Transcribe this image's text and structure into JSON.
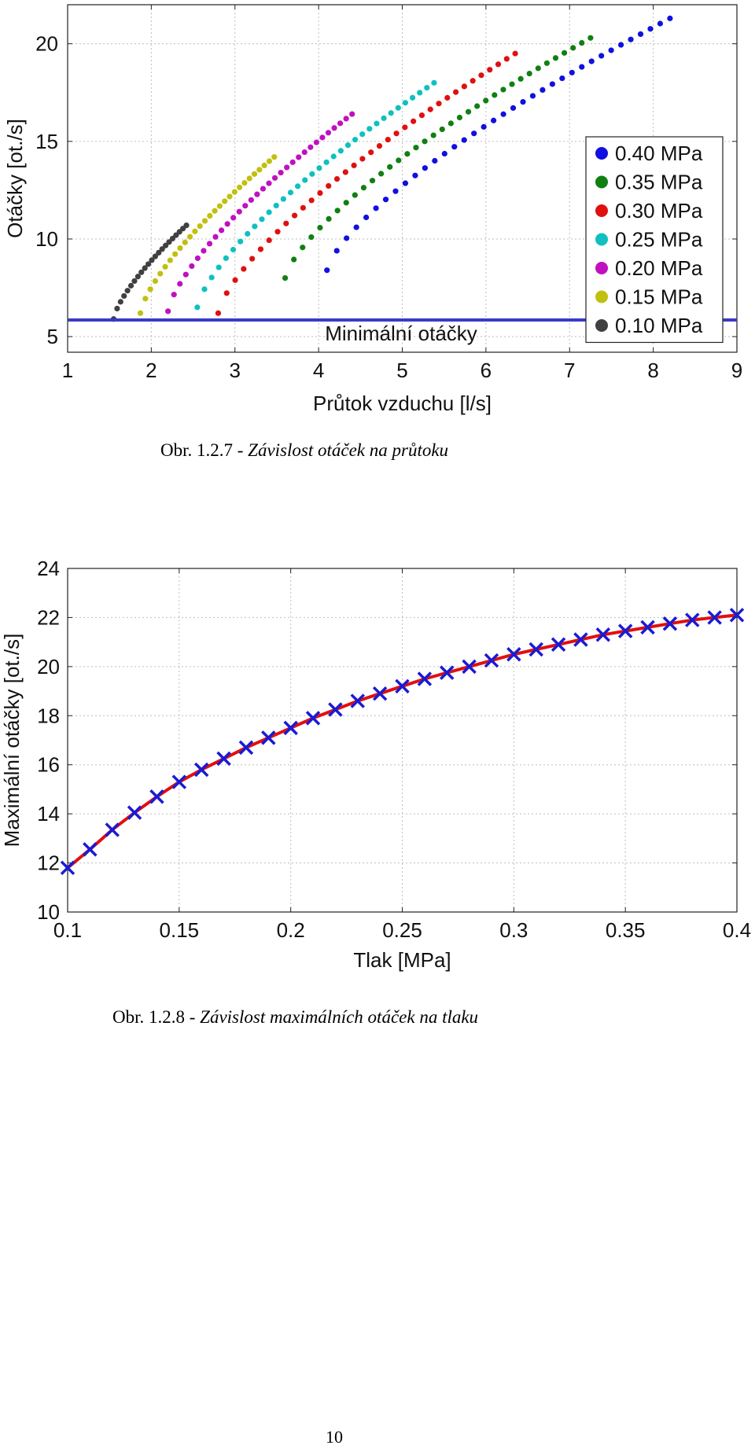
{
  "chart_data": [
    {
      "type": "scatter",
      "xlabel": "Průtok vzduchu [l/s]",
      "ylabel": "Otáčky [ot./s]",
      "xlim": [
        1,
        9
      ],
      "ylim": [
        4.2,
        22
      ],
      "xticks": [
        1,
        2,
        3,
        4,
        5,
        6,
        7,
        8,
        9
      ],
      "yticks": [
        5,
        10,
        15,
        20
      ],
      "grid": true,
      "legend_position": "right",
      "series": [
        {
          "name": "0.40 MPa",
          "color": "#1010e0",
          "x_start": 4.1,
          "x_end": 8.2,
          "y_start": 8.4,
          "y_end": 21.3,
          "points": 36
        },
        {
          "name": "0.35 MPa",
          "color": "#108010",
          "x_start": 3.6,
          "x_end": 7.25,
          "y_start": 8.0,
          "y_end": 20.3,
          "points": 36
        },
        {
          "name": "0.30 MPa",
          "color": "#e01010",
          "x_start": 2.8,
          "x_end": 6.35,
          "y_start": 6.2,
          "y_end": 19.5,
          "points": 36
        },
        {
          "name": "0.25 MPa",
          "color": "#10c0c0",
          "x_start": 2.55,
          "x_end": 5.38,
          "y_start": 6.5,
          "y_end": 18.0,
          "points": 34
        },
        {
          "name": "0.20 MPa",
          "color": "#c010c0",
          "x_start": 2.2,
          "x_end": 4.4,
          "y_start": 6.3,
          "y_end": 16.4,
          "points": 32
        },
        {
          "name": "0.15 MPa",
          "color": "#c0c010",
          "x_start": 1.87,
          "x_end": 3.47,
          "y_start": 6.2,
          "y_end": 14.2,
          "points": 28
        },
        {
          "name": "0.10 MPa",
          "color": "#404040",
          "x_start": 1.55,
          "x_end": 2.42,
          "y_start": 5.9,
          "y_end": 10.7,
          "points": 22
        }
      ],
      "hline": {
        "y": 5.85,
        "color": "#3b3bc4",
        "label": "Minimální otáčky"
      }
    },
    {
      "type": "line",
      "xlabel": "Tlak [MPa]",
      "ylabel": "Maximální otáčky [ot./s]",
      "xlim": [
        0.1,
        0.4
      ],
      "ylim": [
        10,
        24
      ],
      "xticks": [
        0.1,
        0.15,
        0.2,
        0.25,
        0.3,
        0.35,
        0.4
      ],
      "xtick_labels": [
        "0.1",
        "0.15",
        "0.2",
        "0.25",
        "0.3",
        "0.35",
        "0.4"
      ],
      "yticks": [
        10,
        12,
        14,
        16,
        18,
        20,
        22,
        24
      ],
      "grid": true,
      "fit_color": "#e01010",
      "marker_color": "#1a1ad4",
      "x": [
        0.1,
        0.11,
        0.12,
        0.13,
        0.14,
        0.15,
        0.16,
        0.17,
        0.18,
        0.19,
        0.2,
        0.21,
        0.22,
        0.23,
        0.24,
        0.25,
        0.26,
        0.27,
        0.28,
        0.29,
        0.3,
        0.31,
        0.32,
        0.33,
        0.34,
        0.35,
        0.36,
        0.37,
        0.38,
        0.39,
        0.4
      ],
      "y": [
        11.8,
        12.55,
        13.35,
        14.05,
        14.7,
        15.3,
        15.8,
        16.25,
        16.7,
        17.1,
        17.5,
        17.9,
        18.25,
        18.6,
        18.9,
        19.2,
        19.5,
        19.75,
        20.0,
        20.25,
        20.5,
        20.7,
        20.9,
        21.1,
        21.3,
        21.45,
        21.6,
        21.75,
        21.9,
        22.0,
        22.1
      ]
    }
  ],
  "captions": {
    "fig1": {
      "number": "Obr. 1.2.7 - ",
      "text": "Závislost otáček na průtoku"
    },
    "fig2": {
      "number": "Obr. 1.2.8 - ",
      "text": "Závislost maximálních otáček na tlaku"
    }
  },
  "page_number": "10"
}
